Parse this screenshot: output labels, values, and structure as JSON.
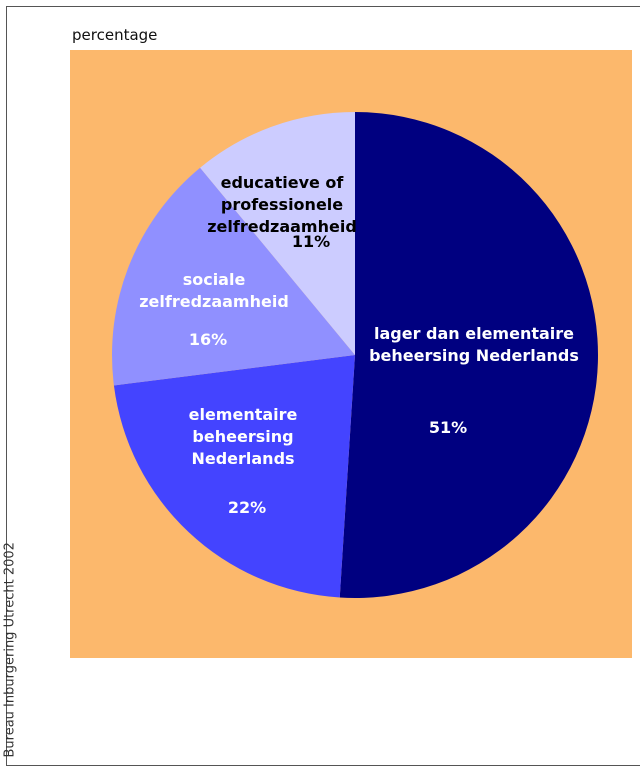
{
  "chart_data": {
    "type": "pie",
    "subtitle": "percentage",
    "source": "Bureau Inburgering Utrecht 2002",
    "categories": [
      "lager dan elementaire beheersing Nederlands",
      "elementaire beheersing Nederlands",
      "sociale zelfredzaamheid",
      "educatieve of professionele zelfredzaamheid"
    ],
    "values": [
      51,
      22,
      16,
      11
    ],
    "value_labels": [
      "51%",
      "22%",
      "16%",
      "11%"
    ],
    "colors": [
      "#000080",
      "#4444ff",
      "#9090ff",
      "#ccccff"
    ],
    "label_colors": [
      "#ffffff",
      "#ffffff",
      "#ffffff",
      "#000000"
    ],
    "background": "#fcb86c"
  }
}
